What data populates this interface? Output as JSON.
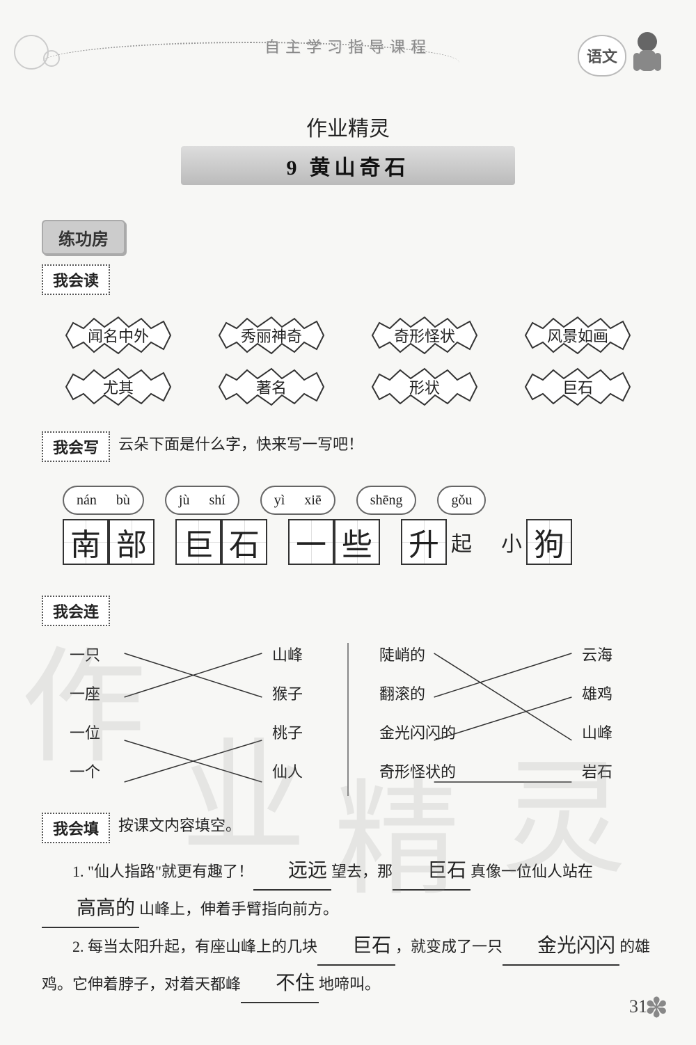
{
  "colors": {
    "page_bg": "#f7f7f5",
    "text": "#222222",
    "header_text": "#888888",
    "box_border": "#333333",
    "dotted_border": "#555555",
    "burst_stroke": "#333333",
    "watermark": "rgba(150,150,150,0.18)"
  },
  "typography": {
    "body_family": "SimSun/STSong serif",
    "handwriting_family": "STKaiti/KaiTi cursive",
    "body_size_pt": 16,
    "title_size_pt": 22
  },
  "header": {
    "title": "自主学习指导课程",
    "subject": "语文",
    "script_note": "作业精灵",
    "lesson_number": "9",
    "lesson_title": "黄山奇石"
  },
  "badges": {
    "practice_room": "练功房"
  },
  "read": {
    "label": "我会读",
    "row1": [
      "闻名中外",
      "秀丽神奇",
      "奇形怪状",
      "风景如画"
    ],
    "row2": [
      "尤其",
      "著名",
      "形状",
      "巨石"
    ]
  },
  "write": {
    "label": "我会写",
    "prompt": "云朵下面是什么字，快来写一写吧！",
    "groups": [
      {
        "pinyin": [
          "nán",
          "bù"
        ],
        "chars": [
          "南",
          "部"
        ],
        "suffix": ""
      },
      {
        "pinyin": [
          "jù",
          "shí"
        ],
        "chars": [
          "巨",
          "石"
        ],
        "suffix": ""
      },
      {
        "pinyin": [
          "yì",
          "xiē"
        ],
        "chars": [
          "一",
          "些"
        ],
        "suffix": ""
      },
      {
        "pinyin": [
          "shēng"
        ],
        "chars": [
          "升"
        ],
        "suffix": "起"
      },
      {
        "pinyin": [
          "gǒu"
        ],
        "prefix": "小",
        "chars": [
          "狗"
        ],
        "suffix": ""
      }
    ]
  },
  "match": {
    "label": "我会连",
    "left_pairs": {
      "left": [
        "一只",
        "一座",
        "一位",
        "一个"
      ],
      "right": [
        "山峰",
        "猴子",
        "桃子",
        "仙人"
      ],
      "lines": [
        [
          0,
          1
        ],
        [
          1,
          0
        ],
        [
          2,
          3
        ],
        [
          3,
          2
        ]
      ],
      "line_color": "#333333",
      "line_width": 1.5
    },
    "right_pairs": {
      "left": [
        "陡峭的",
        "翻滚的",
        "金光闪闪的",
        "奇形怪状的"
      ],
      "right": [
        "云海",
        "雄鸡",
        "山峰",
        "岩石"
      ],
      "lines": [
        [
          0,
          2
        ],
        [
          1,
          0
        ],
        [
          2,
          1
        ],
        [
          3,
          3
        ]
      ],
      "line_color": "#333333",
      "line_width": 1.5
    }
  },
  "fill": {
    "label": "我会填",
    "prompt": "按课文内容填空。",
    "items": [
      {
        "num": "1.",
        "segments": [
          "\"仙人指路\"就更有趣了！",
          {
            "blank": "远远"
          },
          "望去，那",
          {
            "blank": "巨石"
          },
          "真像一位仙人站在",
          {
            "blank": "高高的"
          },
          "山峰上，伸着手臂指向前方。"
        ]
      },
      {
        "num": "2.",
        "segments": [
          "每当太阳升起，有座山峰上的几块",
          {
            "blank": "巨石"
          },
          "，就变成了一只",
          {
            "blank": "金光闪闪"
          },
          "的雄鸡。它伸着脖子，对着天都峰",
          {
            "blank": "不住"
          },
          "地啼叫。"
        ]
      }
    ]
  },
  "watermarks": [
    "作",
    "业",
    "精",
    "灵"
  ],
  "page_number": "31"
}
